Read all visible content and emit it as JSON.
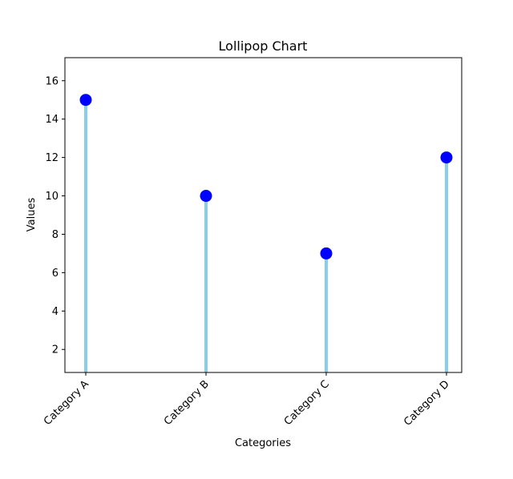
{
  "chart_data": {
    "type": "lollipop",
    "title": "Lollipop Chart",
    "xlabel": "Categories",
    "ylabel": "Values",
    "categories": [
      "Category A",
      "Category B",
      "Category C",
      "Category D"
    ],
    "values": [
      15,
      10,
      7,
      12
    ],
    "ylim": [
      0.8,
      17.2
    ],
    "yticks": [
      2,
      4,
      6,
      8,
      10,
      12,
      14,
      16
    ],
    "grid": false,
    "stem_color": "#87ceeb",
    "marker_color": "#0000ff"
  }
}
